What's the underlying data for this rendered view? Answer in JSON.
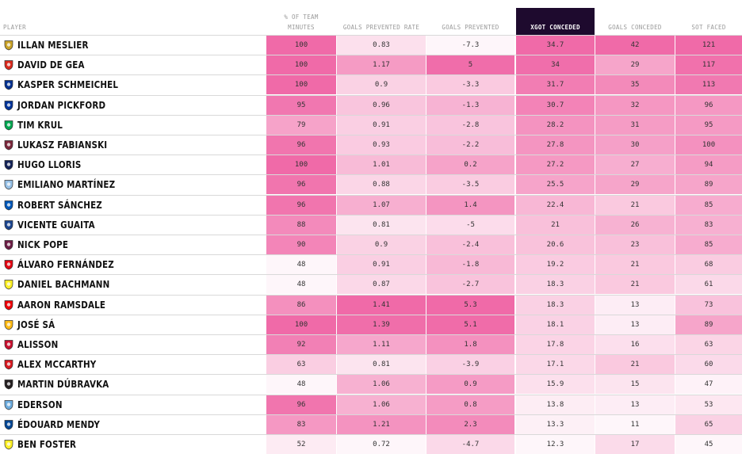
{
  "chart_data": {
    "type": "table",
    "columns": [
      {
        "key": "player",
        "label": "PLAYER"
      },
      {
        "key": "minutes",
        "label_lines": [
          "% OF TEAM",
          "MINUTES"
        ]
      },
      {
        "key": "gpr",
        "label": "GOALS PREVENTED RATE"
      },
      {
        "key": "gp",
        "label": "GOALS PREVENTED"
      },
      {
        "key": "xgot",
        "label": "XGOT CONCEDED",
        "sorted": true
      },
      {
        "key": "gc",
        "label": "GOALS CONCEDED"
      },
      {
        "key": "sot",
        "label": "SOT FACED"
      }
    ],
    "rows": [
      {
        "player": "ILLAN MESLIER",
        "club_color": "#c9a227",
        "minutes": "100",
        "gpr": "0.83",
        "gp": "-7.3",
        "xgot": "34.7",
        "gc": "42",
        "sot": "121"
      },
      {
        "player": "DAVID DE GEA",
        "club_color": "#da291c",
        "minutes": "100",
        "gpr": "1.17",
        "gp": "5",
        "xgot": "34",
        "gc": "29",
        "sot": "117"
      },
      {
        "player": "KASPER SCHMEICHEL",
        "club_color": "#003090",
        "minutes": "100",
        "gpr": "0.9",
        "gp": "-3.3",
        "xgot": "31.7",
        "gc": "35",
        "sot": "113"
      },
      {
        "player": "JORDAN PICKFORD",
        "club_color": "#003399",
        "minutes": "95",
        "gpr": "0.96",
        "gp": "-1.3",
        "xgot": "30.7",
        "gc": "32",
        "sot": "96"
      },
      {
        "player": "TIM KRUL",
        "club_color": "#00a650",
        "minutes": "79",
        "gpr": "0.91",
        "gp": "-2.8",
        "xgot": "28.2",
        "gc": "31",
        "sot": "95"
      },
      {
        "player": "LUKASZ FABIANSKI",
        "club_color": "#7a263a",
        "minutes": "96",
        "gpr": "0.93",
        "gp": "-2.2",
        "xgot": "27.8",
        "gc": "30",
        "sot": "100"
      },
      {
        "player": "HUGO LLORIS",
        "club_color": "#132257",
        "minutes": "100",
        "gpr": "1.01",
        "gp": "0.2",
        "xgot": "27.2",
        "gc": "27",
        "sot": "94"
      },
      {
        "player": "EMILIANO MARTÍNEZ",
        "club_color": "#95bfe5",
        "minutes": "96",
        "gpr": "0.88",
        "gp": "-3.5",
        "xgot": "25.5",
        "gc": "29",
        "sot": "89"
      },
      {
        "player": "ROBERT SÁNCHEZ",
        "club_color": "#0057b8",
        "minutes": "96",
        "gpr": "1.07",
        "gp": "1.4",
        "xgot": "22.4",
        "gc": "21",
        "sot": "85"
      },
      {
        "player": "VICENTE GUAITA",
        "club_color": "#1b458f",
        "minutes": "88",
        "gpr": "0.81",
        "gp": "-5",
        "xgot": "21",
        "gc": "26",
        "sot": "83"
      },
      {
        "player": "NICK POPE",
        "club_color": "#6c1d45",
        "minutes": "90",
        "gpr": "0.9",
        "gp": "-2.4",
        "xgot": "20.6",
        "gc": "23",
        "sot": "85"
      },
      {
        "player": "ÁLVARO FERNÁNDEZ",
        "club_color": "#e30613",
        "minutes": "48",
        "gpr": "0.91",
        "gp": "-1.8",
        "xgot": "19.2",
        "gc": "21",
        "sot": "68"
      },
      {
        "player": "DANIEL BACHMANN",
        "club_color": "#fbee23",
        "minutes": "48",
        "gpr": "0.87",
        "gp": "-2.7",
        "xgot": "18.3",
        "gc": "21",
        "sot": "61"
      },
      {
        "player": "AARON RAMSDALE",
        "club_color": "#ef0107",
        "minutes": "86",
        "gpr": "1.41",
        "gp": "5.3",
        "xgot": "18.3",
        "gc": "13",
        "sot": "73"
      },
      {
        "player": "JOSÉ SÁ",
        "club_color": "#fdb913",
        "minutes": "100",
        "gpr": "1.39",
        "gp": "5.1",
        "xgot": "18.1",
        "gc": "13",
        "sot": "89"
      },
      {
        "player": "ALISSON",
        "club_color": "#c8102e",
        "minutes": "92",
        "gpr": "1.11",
        "gp": "1.8",
        "xgot": "17.8",
        "gc": "16",
        "sot": "63"
      },
      {
        "player": "ALEX MCCARTHY",
        "club_color": "#d71920",
        "minutes": "63",
        "gpr": "0.81",
        "gp": "-3.9",
        "xgot": "17.1",
        "gc": "21",
        "sot": "60"
      },
      {
        "player": "MARTIN DÚBRAVKA",
        "club_color": "#241f20",
        "minutes": "48",
        "gpr": "1.06",
        "gp": "0.9",
        "xgot": "15.9",
        "gc": "15",
        "sot": "47"
      },
      {
        "player": "EDERSON",
        "club_color": "#6cabdd",
        "minutes": "96",
        "gpr": "1.06",
        "gp": "0.8",
        "xgot": "13.8",
        "gc": "13",
        "sot": "53"
      },
      {
        "player": "ÉDOUARD MENDY",
        "club_color": "#034694",
        "minutes": "83",
        "gpr": "1.21",
        "gp": "2.3",
        "xgot": "13.3",
        "gc": "11",
        "sot": "65"
      },
      {
        "player": "BEN FOSTER",
        "club_color": "#fbee23",
        "minutes": "52",
        "gpr": "0.72",
        "gp": "-4.7",
        "xgot": "12.3",
        "gc": "17",
        "sot": "45"
      }
    ],
    "color_scale": {
      "low": "#ffffff",
      "high": "#f06aa8"
    }
  }
}
